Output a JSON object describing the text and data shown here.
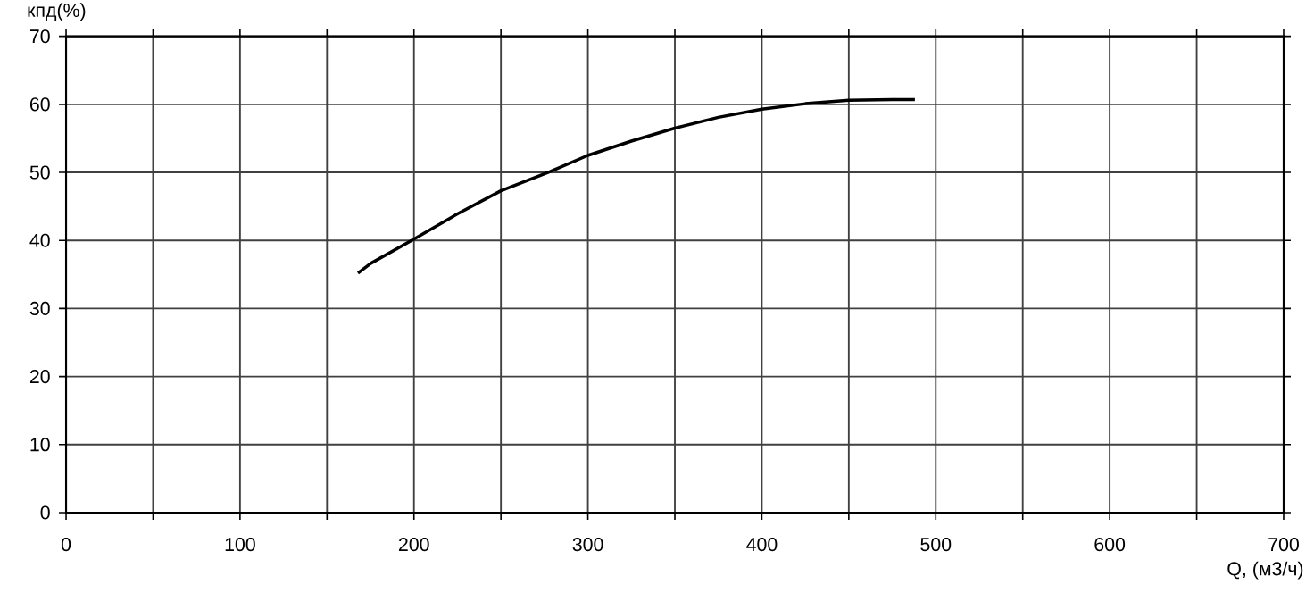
{
  "chart_data": {
    "type": "line",
    "xlabel": "Q, (м3/ч)",
    "ylabel": "кпд(%)",
    "x": [
      167.8,
      175,
      200,
      225,
      250,
      278,
      300,
      325,
      350,
      375,
      400,
      425,
      450,
      475,
      488
    ],
    "series": [
      {
        "color": "#000000",
        "values": [
          35.2,
          36.6,
          40.2,
          43.9,
          47.3,
          50.1,
          52.5,
          54.6,
          56.5,
          58.1,
          59.3,
          60.1,
          60.6,
          60.7,
          60.7
        ]
      }
    ],
    "xlim": [
      0,
      700
    ],
    "ylim": [
      0,
      70
    ],
    "xticks": [
      0,
      {
        "value": 50,
        "label": null
      },
      100,
      {
        "value": 150,
        "label": null
      },
      200,
      {
        "value": 250,
        "label": null
      },
      300,
      {
        "value": 350,
        "label": null
      },
      400,
      {
        "value": 450,
        "label": null
      },
      500,
      {
        "value": 550,
        "label": null
      },
      600,
      {
        "value": 650,
        "label": null
      },
      700
    ],
    "yticks": [
      0,
      10,
      20,
      30,
      40,
      50,
      60,
      70
    ],
    "grid": true
  }
}
